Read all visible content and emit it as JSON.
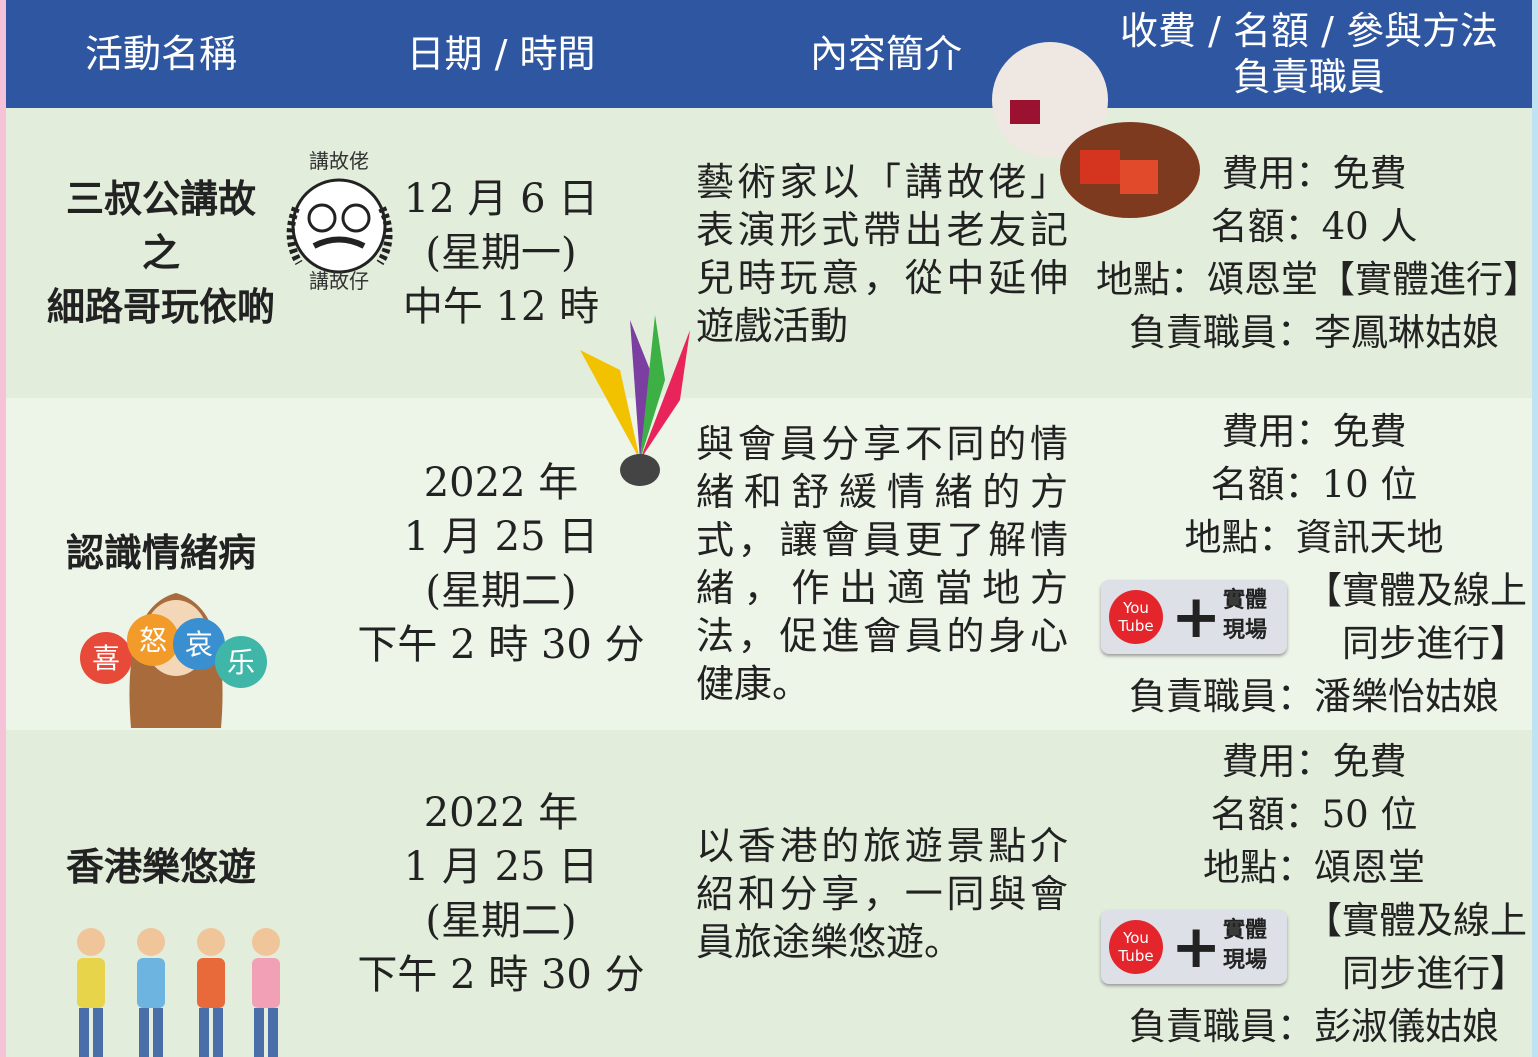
{
  "header": {
    "columns": [
      "活動名稱",
      "日期 / 時間",
      "內容簡介",
      "收費 / 名額 / 參與方法"
    ],
    "last_column_second_line": "負責職員"
  },
  "rows": [
    {
      "name": [
        "三叔公講故",
        "之",
        "細路哥玩依啲"
      ],
      "image_labels": [
        "講故佬",
        "講故仔"
      ],
      "date": [
        "12 月 6 日",
        "(星期一)",
        "中午 12 時"
      ],
      "description": "藝術家以「講故佬」表演形式帶出老友記兒時玩意，從中延伸遊戲活動",
      "details": [
        "費用：免費",
        "名額：40 人",
        "地點：頌恩堂【實體進行】"
      ],
      "staff": "負責職員：李鳳琳姑娘"
    },
    {
      "name": [
        "認識情緒病"
      ],
      "image_labels": [
        "喜",
        "怒",
        "哀",
        "乐"
      ],
      "date": [
        "2022 年",
        "1 月 25 日",
        "(星期二)",
        "下午 2 時 30 分"
      ],
      "description": "與會員分享不同的情緒和舒緩情緒的方式，讓會員更了解情緒，作出適當地方法，促進會員的身心健康。",
      "details": [
        "費用：免費",
        "名額：10 位",
        "地點：資訊天地"
      ],
      "badge": [
        "You",
        "Tube",
        "實體",
        "現場"
      ],
      "mode": [
        "【實體及線上",
        "同步進行】"
      ],
      "staff": "負責職員：潘樂怡姑娘"
    },
    {
      "name": [
        "香港樂悠遊"
      ],
      "date": [
        "2022 年",
        "1 月 25 日",
        "(星期二)",
        "下午 2 時 30 分"
      ],
      "description": "以香港的旅遊景點介紹和分享，一同與會員旅途樂悠遊。",
      "details": [
        "費用：免費",
        "名額：50 位",
        "地點：頌恩堂"
      ],
      "badge": [
        "You",
        "Tube",
        "實體",
        "現場"
      ],
      "mode": [
        "【實體及線上",
        "同步進行】"
      ],
      "staff": "負責職員：彭淑儀姑娘"
    }
  ]
}
